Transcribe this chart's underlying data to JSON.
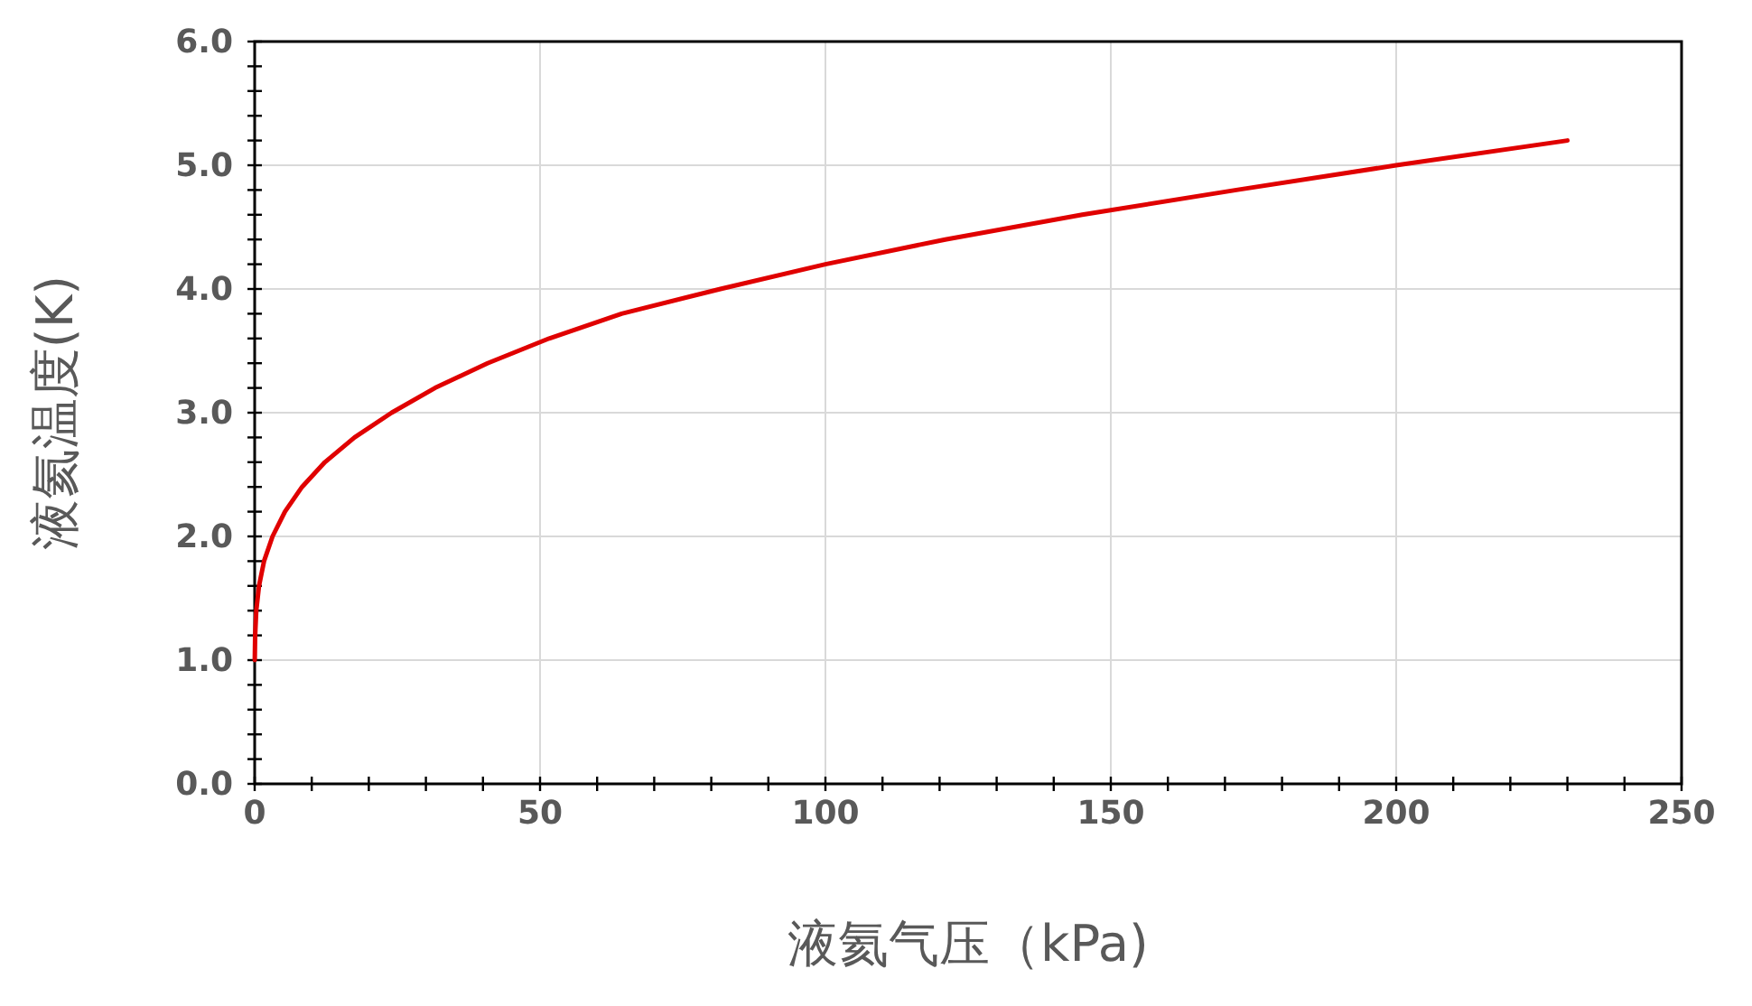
{
  "chart_data": {
    "type": "line",
    "xlabel": "液氦气压（kPa)",
    "ylabel": "液氦温度(K)",
    "x": [
      0.016,
      0.082,
      0.28,
      0.76,
      1.64,
      3.13,
      5.3,
      8.3,
      12.3,
      17.5,
      24.0,
      31.6,
      40.8,
      51.6,
      64.3,
      81.6,
      100,
      121,
      145,
      172,
      200,
      230
    ],
    "series": [
      {
        "color": "#e00000",
        "values": [
          1.0,
          1.2,
          1.4,
          1.6,
          1.8,
          2.0,
          2.2,
          2.4,
          2.6,
          2.8,
          3.0,
          3.2,
          3.4,
          3.6,
          3.8,
          4.0,
          4.2,
          4.4,
          4.6,
          4.8,
          5.0,
          5.2
        ]
      }
    ],
    "xlim": [
      0,
      250
    ],
    "ylim": [
      0,
      6
    ],
    "xticks": [
      0,
      {
        "value": 10,
        "label": null
      },
      {
        "value": 20,
        "label": null
      },
      {
        "value": 30,
        "label": null
      },
      {
        "value": 40,
        "label": null
      },
      50,
      {
        "value": 60,
        "label": null
      },
      {
        "value": 70,
        "label": null
      },
      {
        "value": 80,
        "label": null
      },
      {
        "value": 90,
        "label": null
      },
      100,
      {
        "value": 110,
        "label": null
      },
      {
        "value": 120,
        "label": null
      },
      {
        "value": 130,
        "label": null
      },
      {
        "value": 140,
        "label": null
      },
      150,
      {
        "value": 160,
        "label": null
      },
      {
        "value": 170,
        "label": null
      },
      {
        "value": 180,
        "label": null
      },
      {
        "value": 190,
        "label": null
      },
      200,
      {
        "value": 210,
        "label": null
      },
      {
        "value": 220,
        "label": null
      },
      {
        "value": 230,
        "label": null
      },
      {
        "value": 240,
        "label": null
      },
      250
    ],
    "yticks": [
      {
        "value": 0,
        "label": "0.0"
      },
      {
        "value": 0.2,
        "label": null
      },
      {
        "value": 0.4,
        "label": null
      },
      {
        "value": 0.6,
        "label": null
      },
      {
        "value": 0.8,
        "label": null
      },
      {
        "value": 1,
        "label": "1.0"
      },
      {
        "value": 1.2,
        "label": null
      },
      {
        "value": 1.4,
        "label": null
      },
      {
        "value": 1.6,
        "label": null
      },
      {
        "value": 1.8,
        "label": null
      },
      {
        "value": 2,
        "label": "2.0"
      },
      {
        "value": 2.2,
        "label": null
      },
      {
        "value": 2.4,
        "label": null
      },
      {
        "value": 2.6,
        "label": null
      },
      {
        "value": 2.8,
        "label": null
      },
      {
        "value": 3,
        "label": "3.0"
      },
      {
        "value": 3.2,
        "label": null
      },
      {
        "value": 3.4,
        "label": null
      },
      {
        "value": 3.6,
        "label": null
      },
      {
        "value": 3.8,
        "label": null
      },
      {
        "value": 4,
        "label": "4.0"
      },
      {
        "value": 4.2,
        "label": null
      },
      {
        "value": 4.4,
        "label": null
      },
      {
        "value": 4.6,
        "label": null
      },
      {
        "value": 4.8,
        "label": null
      },
      {
        "value": 5,
        "label": "5.0"
      },
      {
        "value": 5.2,
        "label": null
      },
      {
        "value": 5.4,
        "label": null
      },
      {
        "value": 5.6,
        "label": null
      },
      {
        "value": 5.8,
        "label": null
      },
      {
        "value": 6,
        "label": "6.0"
      }
    ],
    "grid": true,
    "marker": "none",
    "line_style": "solid"
  }
}
